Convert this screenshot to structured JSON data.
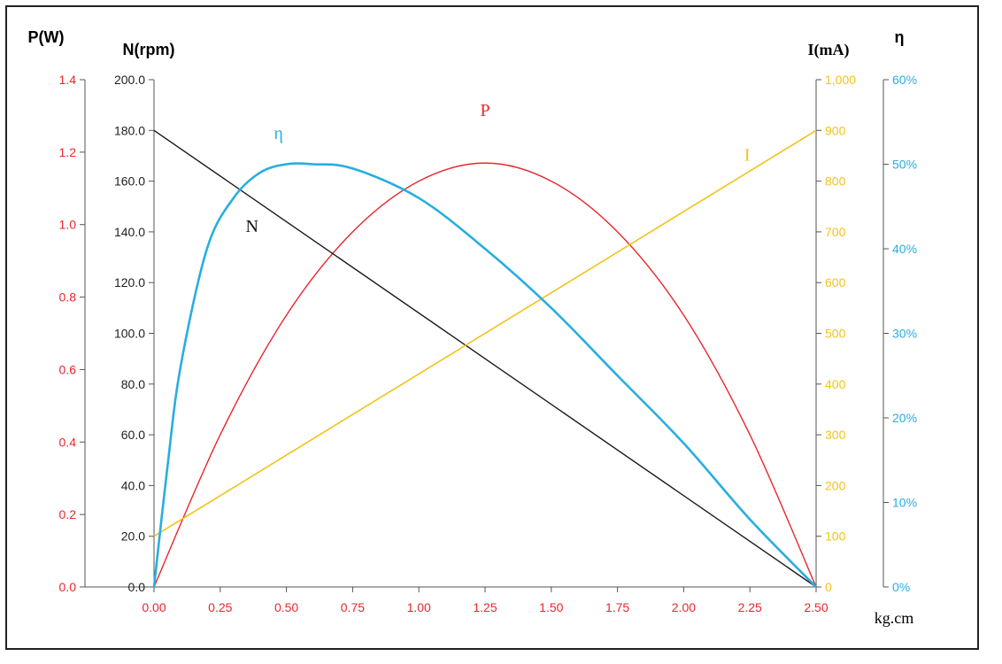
{
  "colors": {
    "power": "#e8272d",
    "speed": "#1a1a1a",
    "current": "#f2c318",
    "efficiency": "#27aee0",
    "axis": "#555555"
  },
  "chart_data": {
    "type": "line",
    "xlabel": "kg.cm",
    "xlim": [
      0,
      2.5
    ],
    "x_ticks": [
      "0.00",
      "0.25",
      "0.50",
      "0.75",
      "1.00",
      "1.25",
      "1.50",
      "1.75",
      "2.00",
      "2.25",
      "2.50"
    ],
    "axes": {
      "power": {
        "label": "P(W)",
        "range": [
          0,
          1.4
        ],
        "ticks": [
          "0.0",
          "0.2",
          "0.4",
          "0.6",
          "0.8",
          "1.0",
          "1.2",
          "1.4"
        ]
      },
      "speed": {
        "label": "N(rpm)",
        "range": [
          0,
          200
        ],
        "ticks": [
          "0.0",
          "20.0",
          "40.0",
          "60.0",
          "80.0",
          "100.0",
          "120.0",
          "140.0",
          "160.0",
          "180.0",
          "200.0"
        ]
      },
      "current": {
        "label": "I(mA)",
        "range": [
          0,
          1000
        ],
        "ticks": [
          "0",
          "100",
          "200",
          "300",
          "400",
          "500",
          "600",
          "700",
          "800",
          "900",
          "1,000"
        ]
      },
      "efficiency": {
        "label": "η",
        "range": [
          0,
          60
        ],
        "ticks": [
          "0%",
          "10%",
          "20%",
          "30%",
          "40%",
          "50%",
          "60%"
        ]
      }
    },
    "series": [
      {
        "name": "P",
        "axis": "power",
        "x": [
          0,
          0.25,
          0.5,
          0.75,
          1.0,
          1.25,
          1.5,
          1.75,
          2.0,
          2.25,
          2.5
        ],
        "values": [
          0,
          0.42,
          0.75,
          0.98,
          1.12,
          1.17,
          1.12,
          0.98,
          0.75,
          0.42,
          0
        ]
      },
      {
        "name": "N",
        "axis": "speed",
        "x": [
          0,
          2.5
        ],
        "values": [
          180,
          0
        ]
      },
      {
        "name": "I",
        "axis": "current",
        "x": [
          0,
          2.5
        ],
        "values": [
          100,
          900
        ]
      },
      {
        "name": "η",
        "axis": "efficiency",
        "x": [
          0,
          0.05,
          0.1,
          0.2,
          0.3,
          0.4,
          0.5,
          0.6,
          0.75,
          1.0,
          1.25,
          1.5,
          1.75,
          2.0,
          2.25,
          2.5
        ],
        "values": [
          0,
          14,
          26,
          40,
          46,
          49,
          50,
          50,
          49.5,
          46,
          40,
          33,
          25,
          17,
          8,
          0
        ]
      }
    ],
    "labels": {
      "power": "P",
      "speed": "N",
      "current": "I",
      "efficiency": "η"
    },
    "grid": false,
    "legend": "inline"
  }
}
